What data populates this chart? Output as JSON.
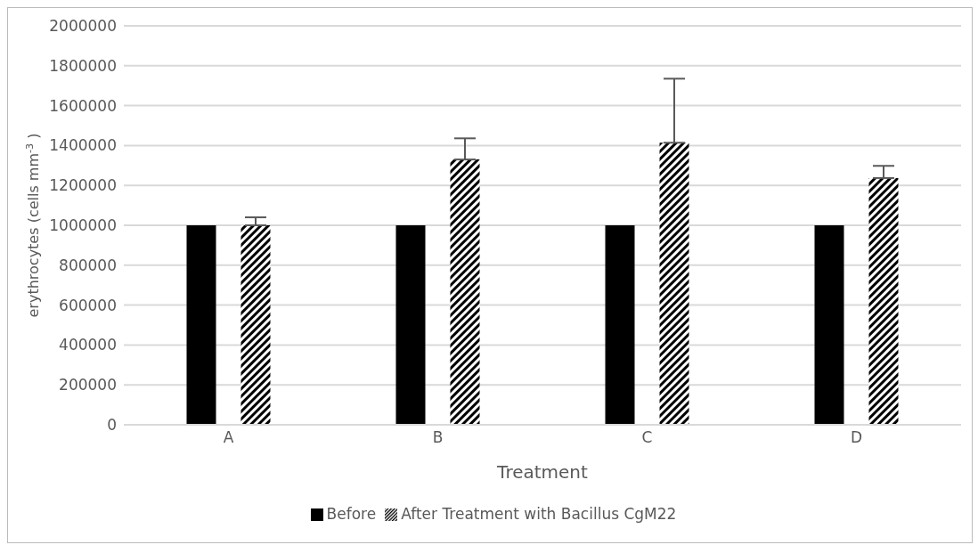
{
  "chart_data": {
    "type": "bar",
    "xlabel": "Treatment",
    "ylabel": "erythrocytes (cells mm$^{-3}$ )",
    "categories": [
      "A",
      "B",
      "C",
      "D"
    ],
    "series": [
      {
        "name": "Before",
        "color": "#000000",
        "values": [
          1000000,
          1000000,
          1000000,
          1000000
        ]
      },
      {
        "name": "After Treatment with Bacillus CgM22",
        "color": "#000000",
        "values": [
          1000000,
          1330000,
          1414000,
          1237000
        ],
        "errors": [
          [
            1000000,
            1040000
          ],
          [
            1330000,
            1436000
          ],
          [
            1414000,
            1735000
          ],
          [
            1237000,
            1298000
          ]
        ]
      }
    ],
    "ylim": [
      0,
      2000000
    ],
    "yticks": [
      0,
      200000,
      400000,
      600000,
      800000,
      1000000,
      1200000,
      1400000,
      1600000,
      1800000,
      2000000
    ],
    "grid": "y",
    "legend": "bottom"
  }
}
